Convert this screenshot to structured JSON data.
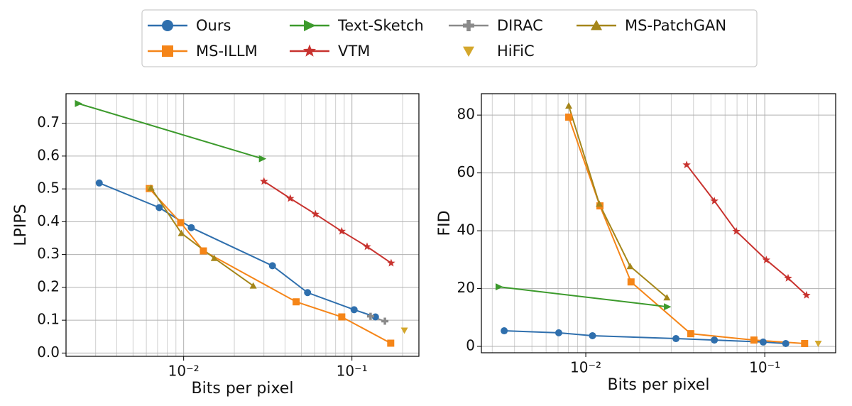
{
  "chart_data": [
    {
      "type": "line",
      "xscale": "log",
      "grid": true,
      "legend": "top",
      "xlabel": "Bits per pixel",
      "ylabel": "LPIPS",
      "xlim": [
        0.002,
        0.25
      ],
      "ylim": [
        -0.01,
        0.79
      ],
      "xticks": [
        {
          "value": 0.01,
          "label": "10⁻²"
        },
        {
          "value": 0.1,
          "label": "10⁻¹"
        }
      ],
      "xminorticks": [
        0.003,
        0.004,
        0.005,
        0.006,
        0.007,
        0.008,
        0.009,
        0.02,
        0.03,
        0.04,
        0.05,
        0.06,
        0.07,
        0.08,
        0.09,
        0.2
      ],
      "yticks": [
        {
          "value": 0,
          "label": "0.0"
        },
        0.1,
        0.2,
        0.3,
        0.4,
        0.5,
        0.6,
        0.7
      ],
      "series": [
        {
          "name": "Ours",
          "color": "#2f6fad",
          "marker": "o",
          "line": true,
          "x": [
            0.00315,
            0.00716,
            0.0111,
            0.0337,
            0.0545,
            0.103,
            0.138
          ],
          "values": [
            0.518,
            0.443,
            0.382,
            0.266,
            0.184,
            0.132,
            0.11
          ]
        },
        {
          "name": "MS-ILLM",
          "color": "#f58518",
          "marker": "s",
          "line": true,
          "x": [
            0.00625,
            0.0096,
            0.0131,
            0.0466,
            0.087,
            0.17
          ],
          "values": [
            0.501,
            0.397,
            0.311,
            0.156,
            0.11,
            0.03
          ]
        },
        {
          "name": "Text-Sketch",
          "color": "#3c9a2c",
          "marker": ">",
          "line": true,
          "x": [
            0.00237,
            0.0294
          ],
          "values": [
            0.76,
            0.592
          ]
        },
        {
          "name": "VTM",
          "color": "#c8332f",
          "marker": "*",
          "line": true,
          "x": [
            0.03,
            0.043,
            0.0607,
            0.087,
            0.123,
            0.171
          ],
          "values": [
            0.523,
            0.471,
            0.423,
            0.371,
            0.324,
            0.274
          ]
        },
        {
          "name": "DIRAC",
          "color": "#8a8a8a",
          "marker": "P",
          "line": true,
          "x": [
            0.129,
            0.157
          ],
          "values": [
            0.112,
            0.097
          ]
        },
        {
          "name": "HiFiC",
          "color": "#d4a72c",
          "marker": "v",
          "line": false,
          "x": [
            0.0063,
            0.205
          ],
          "values": [
            0.5,
            0.069
          ]
        },
        {
          "name": "MS-PatchGAN",
          "color": "#a5861a",
          "marker": "^",
          "line": true,
          "x": [
            0.0064,
            0.0097,
            0.0152,
            0.0259
          ],
          "values": [
            0.503,
            0.365,
            0.289,
            0.205
          ]
        }
      ]
    },
    {
      "type": "line",
      "xscale": "log",
      "grid": true,
      "xlabel": "Bits per pixel",
      "ylabel": "FID",
      "xlim": [
        0.00261,
        0.249
      ],
      "ylim": [
        -2.2,
        87.4
      ],
      "xticks": [
        {
          "value": 0.01,
          "label": "10⁻²"
        },
        {
          "value": 0.1,
          "label": "10⁻¹"
        }
      ],
      "xminorticks": [
        0.003,
        0.004,
        0.005,
        0.006,
        0.007,
        0.008,
        0.009,
        0.02,
        0.03,
        0.04,
        0.05,
        0.06,
        0.07,
        0.08,
        0.09,
        0.2
      ],
      "yticks": [
        0,
        20,
        40,
        60,
        80
      ],
      "series": [
        {
          "name": "Ours",
          "color": "#2f6fad",
          "marker": "o",
          "line": true,
          "x": [
            0.0035,
            0.00706,
            0.0109,
            0.0319,
            0.0523,
            0.098,
            0.131
          ],
          "values": [
            5.4,
            4.7,
            3.7,
            2.7,
            2.2,
            1.5,
            1.0
          ]
        },
        {
          "name": "MS-ILLM",
          "color": "#f58518",
          "marker": "s",
          "line": true,
          "x": [
            0.00803,
            0.012,
            0.0179,
            0.0386,
            0.087,
            0.167
          ],
          "values": [
            79.3,
            48.6,
            22.3,
            4.4,
            2.2,
            1.0
          ]
        },
        {
          "name": "Text-Sketch",
          "color": "#3c9a2c",
          "marker": ">",
          "line": true,
          "x": [
            0.00328,
            0.0286
          ],
          "values": [
            20.6,
            13.7
          ]
        },
        {
          "name": "VTM",
          "color": "#c8332f",
          "marker": "*",
          "line": true,
          "x": [
            0.0366,
            0.0523,
            0.0694,
            0.102,
            0.135,
            0.171
          ],
          "values": [
            62.8,
            50.3,
            39.8,
            29.9,
            23.6,
            17.7
          ]
        },
        {
          "name": "HiFiC",
          "color": "#d4a72c",
          "marker": "v",
          "line": false,
          "x": [
            0.199
          ],
          "values": [
            1.0
          ]
        },
        {
          "name": "MS-PatchGAN",
          "color": "#a5861a",
          "marker": "^",
          "line": true,
          "x": [
            0.00803,
            0.0119,
            0.0177,
            0.0284
          ],
          "values": [
            83.2,
            49.3,
            27.7,
            16.9
          ]
        }
      ]
    }
  ]
}
